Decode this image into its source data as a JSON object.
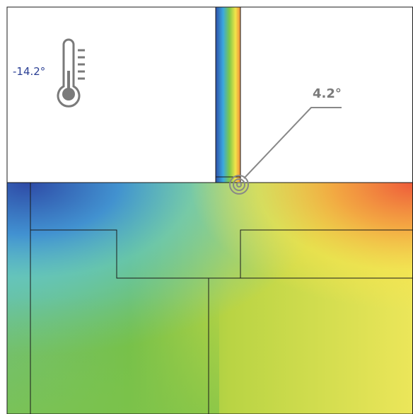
{
  "labels": {
    "outdoor_temperature": "-14.2°",
    "surface_temperature": "4.2°"
  }
}
